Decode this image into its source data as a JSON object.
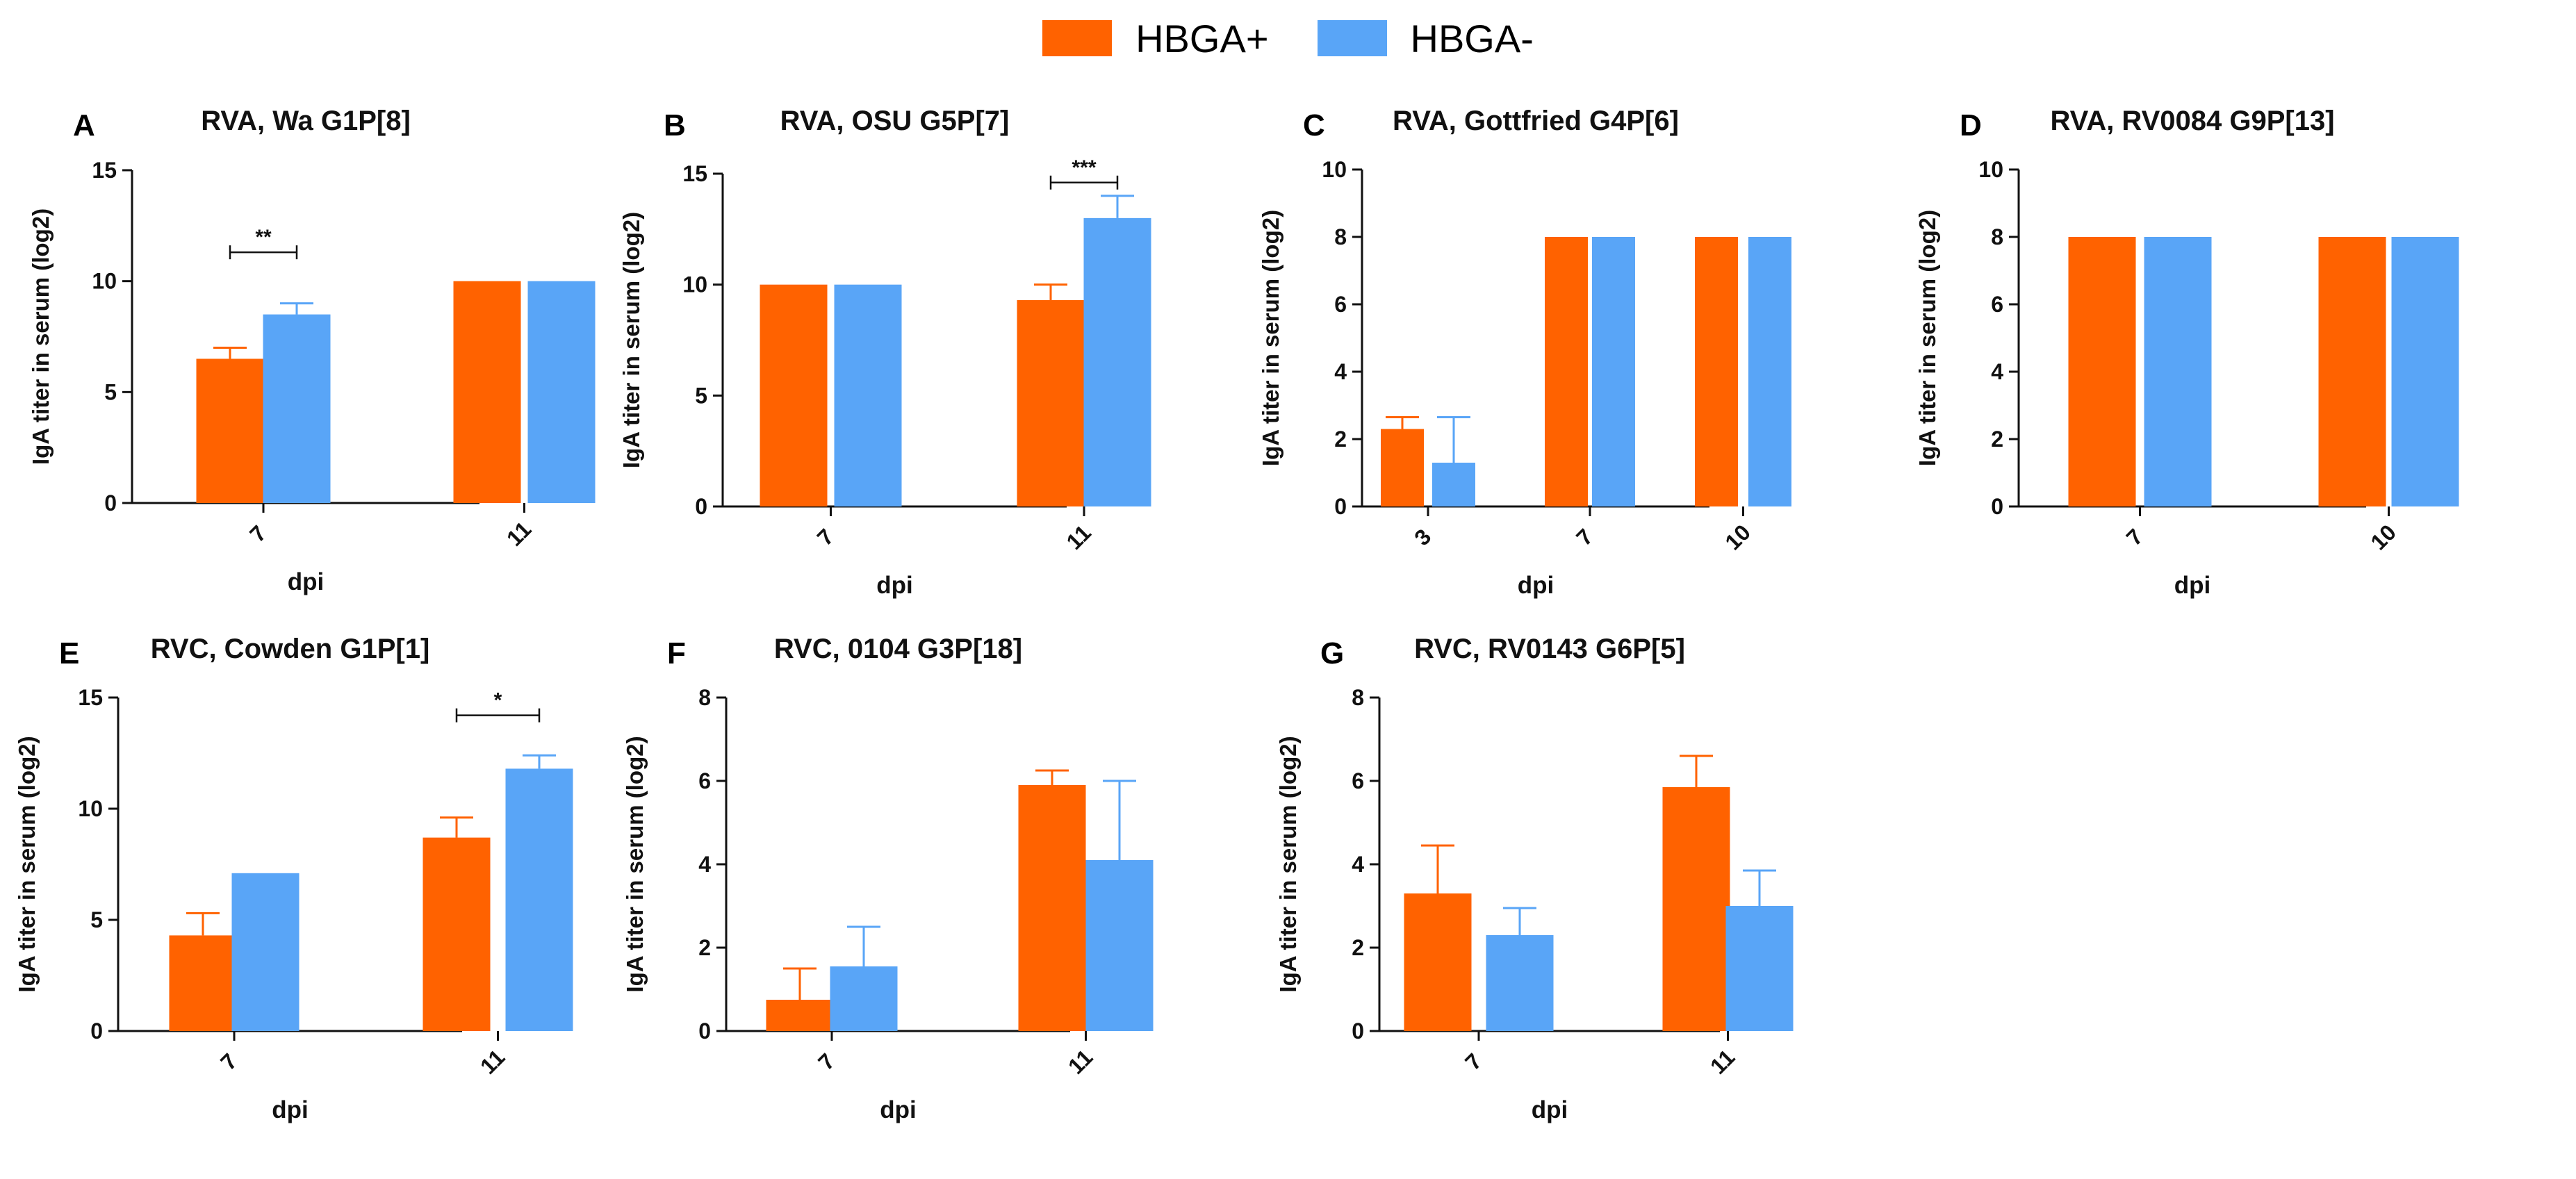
{
  "colors": {
    "hbga_pos": "#FF6200",
    "hbga_neg": "#59A5F7",
    "axis": "#111111"
  },
  "legend": [
    {
      "label": "HBGA+",
      "color": "#FF6200"
    },
    {
      "label": "HBGA-",
      "color": "#59A5F7"
    }
  ],
  "chart_data": [
    {
      "type": "bar",
      "letter": "A",
      "title": "RVA, Wa G1P[8]",
      "xlabel": "dpi",
      "ylabel": "IgA titer in serum (log2)",
      "ylim": [
        0,
        15
      ],
      "yticks": [
        "0",
        "5",
        "10",
        "15"
      ],
      "categories": [
        "7",
        "11"
      ],
      "series": [
        {
          "name": "HBGA+",
          "values": [
            6.5,
            10
          ],
          "errors": [
            0.5,
            0
          ]
        },
        {
          "name": "HBGA-",
          "values": [
            8.5,
            10
          ],
          "errors": [
            0.5,
            0
          ]
        }
      ],
      "significance": [
        {
          "category": 0,
          "label": "**",
          "y": 11.3
        }
      ]
    },
    {
      "type": "bar",
      "letter": "B",
      "title": "RVA, OSU G5P[7]",
      "xlabel": "dpi",
      "ylabel": "IgA titer in serum (log2)",
      "ylim": [
        0,
        15
      ],
      "yticks": [
        "0",
        "5",
        "10",
        "15"
      ],
      "categories": [
        "7",
        "11"
      ],
      "series": [
        {
          "name": "HBGA+",
          "values": [
            10,
            9.3
          ],
          "errors": [
            0,
            0.7
          ]
        },
        {
          "name": "HBGA-",
          "values": [
            10,
            13
          ],
          "errors": [
            0,
            1
          ]
        }
      ],
      "significance": [
        {
          "category": 1,
          "label": "***",
          "y": 14.6
        }
      ]
    },
    {
      "type": "bar",
      "letter": "C",
      "title": "RVA, Gottfried G4P[6]",
      "xlabel": "dpi",
      "ylabel": "IgA titer in serum (log2)",
      "ylim": [
        0,
        10
      ],
      "yticks": [
        "0",
        "2",
        "4",
        "6",
        "8",
        "10"
      ],
      "categories": [
        "3",
        "7",
        "10"
      ],
      "series": [
        {
          "name": "HBGA+",
          "values": [
            2.3,
            8,
            8
          ],
          "errors": [
            0.35,
            0,
            0
          ]
        },
        {
          "name": "HBGA-",
          "values": [
            1.3,
            8,
            8
          ],
          "errors": [
            1.35,
            0,
            0
          ]
        }
      ],
      "significance": []
    },
    {
      "type": "bar",
      "letter": "D",
      "title": "RVA, RV0084 G9P[13]",
      "xlabel": "dpi",
      "ylabel": "IgA titer in serum (log2)",
      "ylim": [
        0,
        10
      ],
      "yticks": [
        "0",
        "2",
        "4",
        "6",
        "8",
        "10"
      ],
      "categories": [
        "7",
        "10"
      ],
      "series": [
        {
          "name": "HBGA+",
          "values": [
            8,
            8
          ],
          "errors": [
            0,
            0
          ]
        },
        {
          "name": "HBGA-",
          "values": [
            8,
            8
          ],
          "errors": [
            0,
            0
          ]
        }
      ],
      "significance": []
    },
    {
      "type": "bar",
      "letter": "E",
      "title": "RVC, Cowden G1P[1]",
      "xlabel": "dpi",
      "ylabel": "IgA titer in serum (log2)",
      "ylim": [
        0,
        15
      ],
      "yticks": [
        "0",
        "5",
        "10",
        "15"
      ],
      "categories": [
        "7",
        "11"
      ],
      "series": [
        {
          "name": "HBGA+",
          "values": [
            4.3,
            8.7
          ],
          "errors": [
            1.0,
            0.9
          ]
        },
        {
          "name": "HBGA-",
          "values": [
            7.1,
            11.8
          ],
          "errors": [
            0,
            0.6
          ]
        }
      ],
      "significance": [
        {
          "category": 1,
          "label": "*",
          "y": 14.2
        }
      ]
    },
    {
      "type": "bar",
      "letter": "F",
      "title": "RVC, 0104 G3P[18]",
      "xlabel": "dpi",
      "ylabel": "IgA titer in serum (log2)",
      "ylim": [
        0,
        8
      ],
      "yticks": [
        "0",
        "2",
        "4",
        "6",
        "8"
      ],
      "categories": [
        "7",
        "11"
      ],
      "series": [
        {
          "name": "HBGA+",
          "values": [
            0.75,
            5.9
          ],
          "errors": [
            0.75,
            0.35
          ]
        },
        {
          "name": "HBGA-",
          "values": [
            1.55,
            4.1
          ],
          "errors": [
            0.95,
            1.9
          ]
        }
      ],
      "significance": []
    },
    {
      "type": "bar",
      "letter": "G",
      "title": "RVC, RV0143 G6P[5]",
      "xlabel": "dpi",
      "ylabel": "IgA titer in serum (log2)",
      "ylim": [
        0,
        8
      ],
      "yticks": [
        "0",
        "2",
        "4",
        "6",
        "8"
      ],
      "categories": [
        "7",
        "11"
      ],
      "series": [
        {
          "name": "HBGA+",
          "values": [
            3.3,
            5.85
          ],
          "errors": [
            1.15,
            0.75
          ]
        },
        {
          "name": "HBGA-",
          "values": [
            2.3,
            3.0
          ],
          "errors": [
            0.65,
            0.85
          ]
        }
      ],
      "significance": []
    }
  ]
}
